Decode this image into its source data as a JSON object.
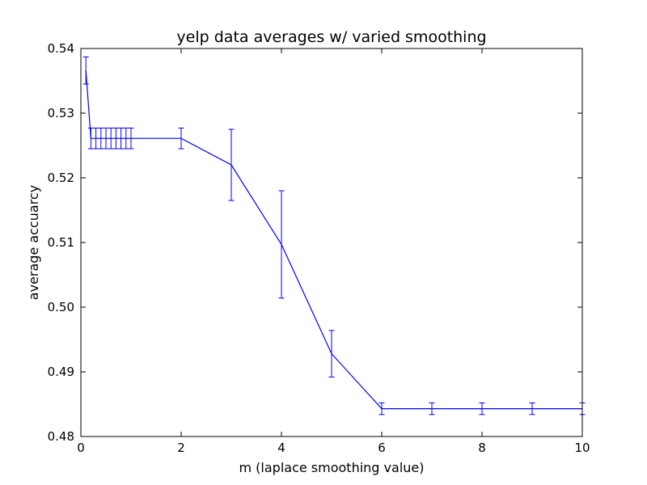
{
  "chart_data": {
    "type": "line",
    "title": "yelp data averages w/ varied smoothing",
    "xlabel": "m (laplace smoothing value)",
    "ylabel": "average accuarcy",
    "xlim": [
      0,
      10
    ],
    "ylim": [
      0.48,
      0.54
    ],
    "xticks": [
      "0",
      "2",
      "4",
      "6",
      "8",
      "10"
    ],
    "yticks": [
      "0.48",
      "0.49",
      "0.50",
      "0.51",
      "0.52",
      "0.53",
      "0.54"
    ],
    "grid": false,
    "line_color": "#0000ff",
    "series": [
      {
        "x": [
          0.1,
          0.2,
          0.3,
          0.4,
          0.5,
          0.6,
          0.7,
          0.8,
          0.9,
          1.0,
          2,
          3,
          4,
          5,
          6,
          7,
          8,
          9,
          10
        ],
        "y": [
          0.5366,
          0.5261,
          0.5261,
          0.5261,
          0.5261,
          0.5261,
          0.5261,
          0.5261,
          0.5261,
          0.5261,
          0.5261,
          0.522,
          0.5097,
          0.4928,
          0.4843,
          0.4843,
          0.4843,
          0.4843,
          0.4843
        ],
        "yerr": [
          0.0021,
          0.0016,
          0.0016,
          0.0016,
          0.0016,
          0.0016,
          0.0016,
          0.0016,
          0.0016,
          0.0016,
          0.0016,
          0.0055,
          0.0083,
          0.0036,
          0.0009,
          0.0009,
          0.0009,
          0.0009,
          0.0009
        ]
      }
    ]
  }
}
